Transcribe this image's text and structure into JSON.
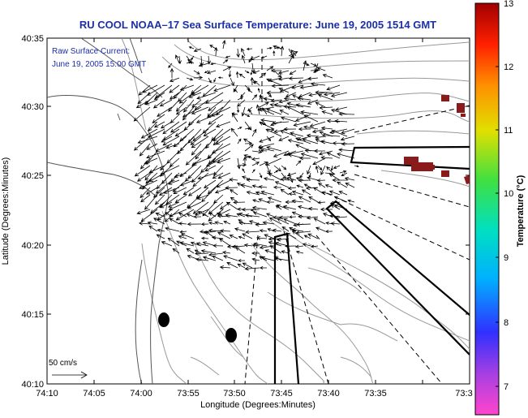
{
  "title": "RU COOL  NOAA–17  Sea Surface Temperature:  June 19, 2005 1514 GMT",
  "inset": {
    "line1": "Raw Surface Current:",
    "line2": "June 19, 2005 15:00 GMT"
  },
  "scale_label": "50 cm/s",
  "x_axis": {
    "label": "Longitude (Degrees:Minutes)",
    "ticks": [
      "74:10",
      "74:05",
      "74:00",
      "73:55",
      "73:50",
      "73:45",
      "73:40",
      "73:35",
      "73:3"
    ]
  },
  "y_axis": {
    "label": "Latitude (Degrees:Minutes)",
    "ticks": [
      "40:35",
      "40:30",
      "40:25",
      "40:20",
      "40:15",
      "40:10"
    ]
  },
  "colorbar": {
    "label": "Temperature (°C)",
    "ticks": [
      "13",
      "12",
      "11",
      "10",
      "9",
      "8",
      "7"
    ],
    "min": 6.5,
    "max": 13,
    "colors": [
      "#ff44cc",
      "#b040e0",
      "#3030ff",
      "#00b0ff",
      "#00e0c0",
      "#40e040",
      "#e0e000",
      "#ff9000",
      "#ff2000",
      "#a00000"
    ]
  },
  "map_features": {
    "sst_patch_color": "#8b1a1a",
    "coast_color": "#555555",
    "bathy_color": "#999999",
    "markers": "black ellipses (station sites)"
  }
}
